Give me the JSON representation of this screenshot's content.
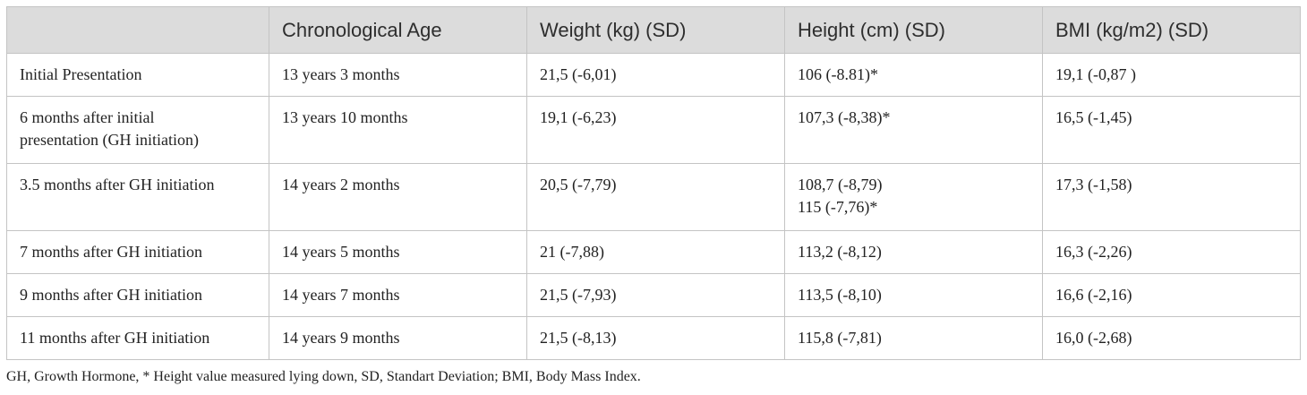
{
  "table": {
    "headers": [
      "",
      "Chronological Age",
      "Weight (kg) (SD)",
      "Height (cm) (SD)",
      "BMI (kg/m2) (SD)"
    ],
    "rows": [
      {
        "label": [
          "Initial Presentation"
        ],
        "age": "13 years 3 months",
        "weight": "21,5 (-6,01)",
        "height": [
          "106 (-8.81)*"
        ],
        "bmi": "19,1 (-0,87 )"
      },
      {
        "label": [
          "6 months after initial",
          "presentation (GH initiation)"
        ],
        "age": "13 years 10 months",
        "weight": "19,1 (-6,23)",
        "height": [
          "107,3 (-8,38)*"
        ],
        "bmi": "16,5 (-1,45)"
      },
      {
        "label": [
          "3.5 months after GH initiation"
        ],
        "age": "14 years 2 months",
        "weight": "20,5 (-7,79)",
        "height": [
          "108,7 (-8,79)",
          "115 (-7,76)*"
        ],
        "bmi": "17,3 (-1,58)"
      },
      {
        "label": [
          "7 months after GH initiation"
        ],
        "age": "14 years 5 months",
        "weight": "21 (-7,88)",
        "height": [
          "113,2 (-8,12)"
        ],
        "bmi": "16,3 (-2,26)"
      },
      {
        "label": [
          "9 months after GH initiation"
        ],
        "age": "14 years 7 months",
        "weight": "21,5 (-7,93)",
        "height": [
          "113,5 (-8,10)"
        ],
        "bmi": "16,6 (-2,16)"
      },
      {
        "label": [
          "11 months after GH initiation"
        ],
        "age": "14 years 9 months",
        "weight": "21,5 (-8,13)",
        "height": [
          "115,8 (-7,81)"
        ],
        "bmi": "16,0 (-2,68)"
      }
    ]
  },
  "footnote": "GH, Growth Hormone, * Height value measured lying down, SD, Standart Deviation; BMI, Body Mass Index."
}
